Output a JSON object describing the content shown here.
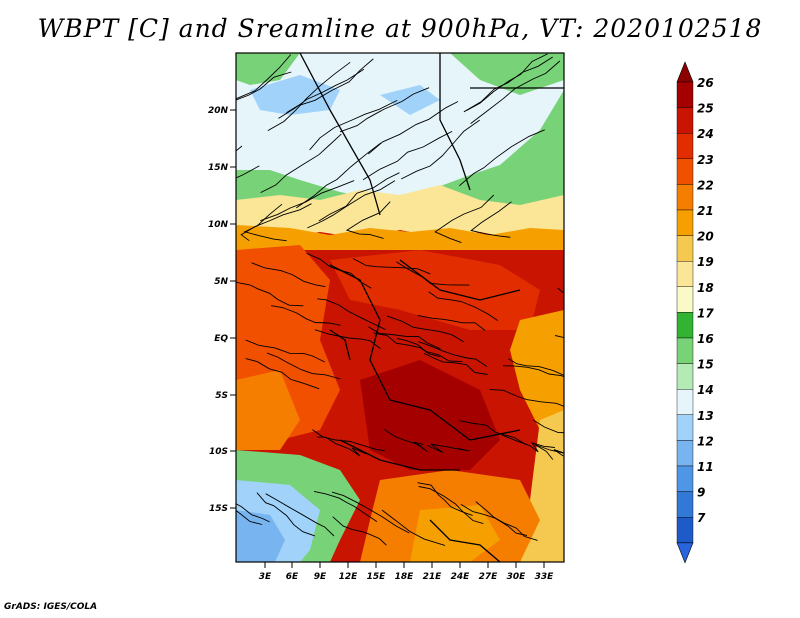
{
  "title": "WBPT [C] and Sreamline at 900hPa, VT: 2020102518",
  "credit": "GrADS: IGES/COLA",
  "map": {
    "lat_ticks": [
      "20N",
      "15N",
      "10N",
      "5N",
      "EQ",
      "5S",
      "10S",
      "15S"
    ],
    "lon_ticks": [
      "3E",
      "6E",
      "9E",
      "12E",
      "15E",
      "18E",
      "21E",
      "24E",
      "27E",
      "30E",
      "33E"
    ]
  },
  "colorbar": {
    "labels": [
      "26",
      "25",
      "24",
      "23",
      "22",
      "21",
      "20",
      "19",
      "18",
      "17",
      "16",
      "15",
      "14",
      "13",
      "12",
      "11",
      "9",
      "7"
    ],
    "colors": [
      "#a50000",
      "#c81400",
      "#e12d00",
      "#f05000",
      "#f57d00",
      "#f5a000",
      "#f5c850",
      "#fae696",
      "#fafac8",
      "#32b432",
      "#78d278",
      "#b4eab4",
      "#e6f5fa",
      "#a0d2fa",
      "#78b4f0",
      "#5096e6",
      "#3278d7",
      "#1e5ac8"
    ],
    "top_arrow_color": "#8c0000",
    "bottom_arrow_color": "#2864dc"
  }
}
